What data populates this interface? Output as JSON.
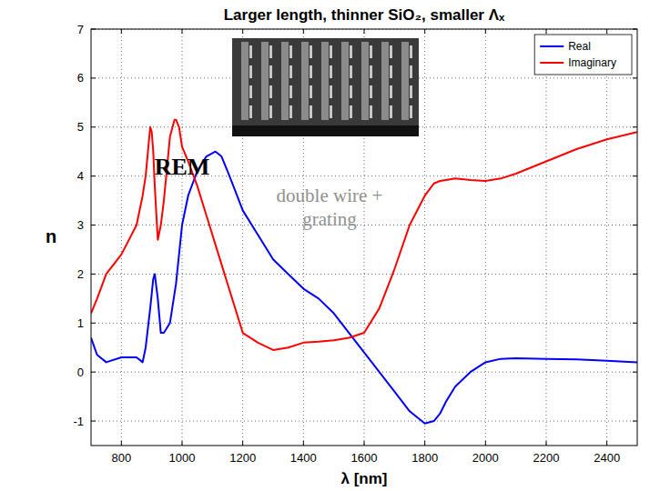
{
  "chart_data": {
    "type": "line",
    "title": "Larger length, thinner SiO₂, smaller Λₓ",
    "x_label": "λ [nm]",
    "y_label": "n",
    "annotations": [
      "REM",
      "double wire + grating"
    ],
    "x": [
      700,
      720,
      750,
      800,
      850,
      870,
      880,
      895,
      900,
      905,
      910,
      920,
      930,
      940,
      960,
      975,
      980,
      990,
      1000,
      1020,
      1050,
      1080,
      1110,
      1130,
      1150,
      1200,
      1250,
      1300,
      1350,
      1400,
      1450,
      1500,
      1550,
      1600,
      1650,
      1700,
      1750,
      1800,
      1830,
      1850,
      1870,
      1900,
      1950,
      2000,
      2050,
      2100,
      2200,
      2300,
      2400,
      2500
    ],
    "series": [
      {
        "name": "Real",
        "color": "#0000ff",
        "values": [
          0.7,
          0.35,
          0.2,
          0.3,
          0.3,
          0.2,
          0.5,
          1.3,
          1.6,
          1.9,
          2.0,
          1.5,
          0.8,
          0.8,
          1.0,
          1.6,
          1.8,
          2.4,
          3.0,
          3.6,
          4.1,
          4.4,
          4.5,
          4.4,
          4.1,
          3.3,
          2.8,
          2.3,
          2.0,
          1.7,
          1.5,
          1.2,
          0.8,
          0.4,
          0.0,
          -0.4,
          -0.8,
          -1.05,
          -1.0,
          -0.85,
          -0.6,
          -0.3,
          0.0,
          0.2,
          0.27,
          0.28,
          0.27,
          0.26,
          0.23,
          0.2
        ]
      },
      {
        "name": "Imaginary",
        "color": "#ff0000",
        "values": [
          1.2,
          1.5,
          2.0,
          2.4,
          3.0,
          3.6,
          4.0,
          5.0,
          4.9,
          4.5,
          3.8,
          2.7,
          3.0,
          3.5,
          4.8,
          5.15,
          5.15,
          5.0,
          4.6,
          4.3,
          3.8,
          3.2,
          2.6,
          2.2,
          1.8,
          0.8,
          0.6,
          0.45,
          0.5,
          0.6,
          0.62,
          0.65,
          0.7,
          0.8,
          1.3,
          2.1,
          3.0,
          3.6,
          3.85,
          3.9,
          3.92,
          3.95,
          3.92,
          3.9,
          3.95,
          4.05,
          4.3,
          4.55,
          4.75,
          4.9
        ]
      }
    ],
    "xlim": [
      700,
      2500
    ],
    "xticks": [
      800,
      1000,
      1200,
      1400,
      1600,
      1800,
      2000,
      2200,
      2400
    ],
    "ylim": [
      -1.5,
      7
    ],
    "yticks": [
      -1,
      0,
      1,
      2,
      3,
      4,
      5,
      6,
      7
    ],
    "grid": true,
    "legend": "top-right"
  }
}
